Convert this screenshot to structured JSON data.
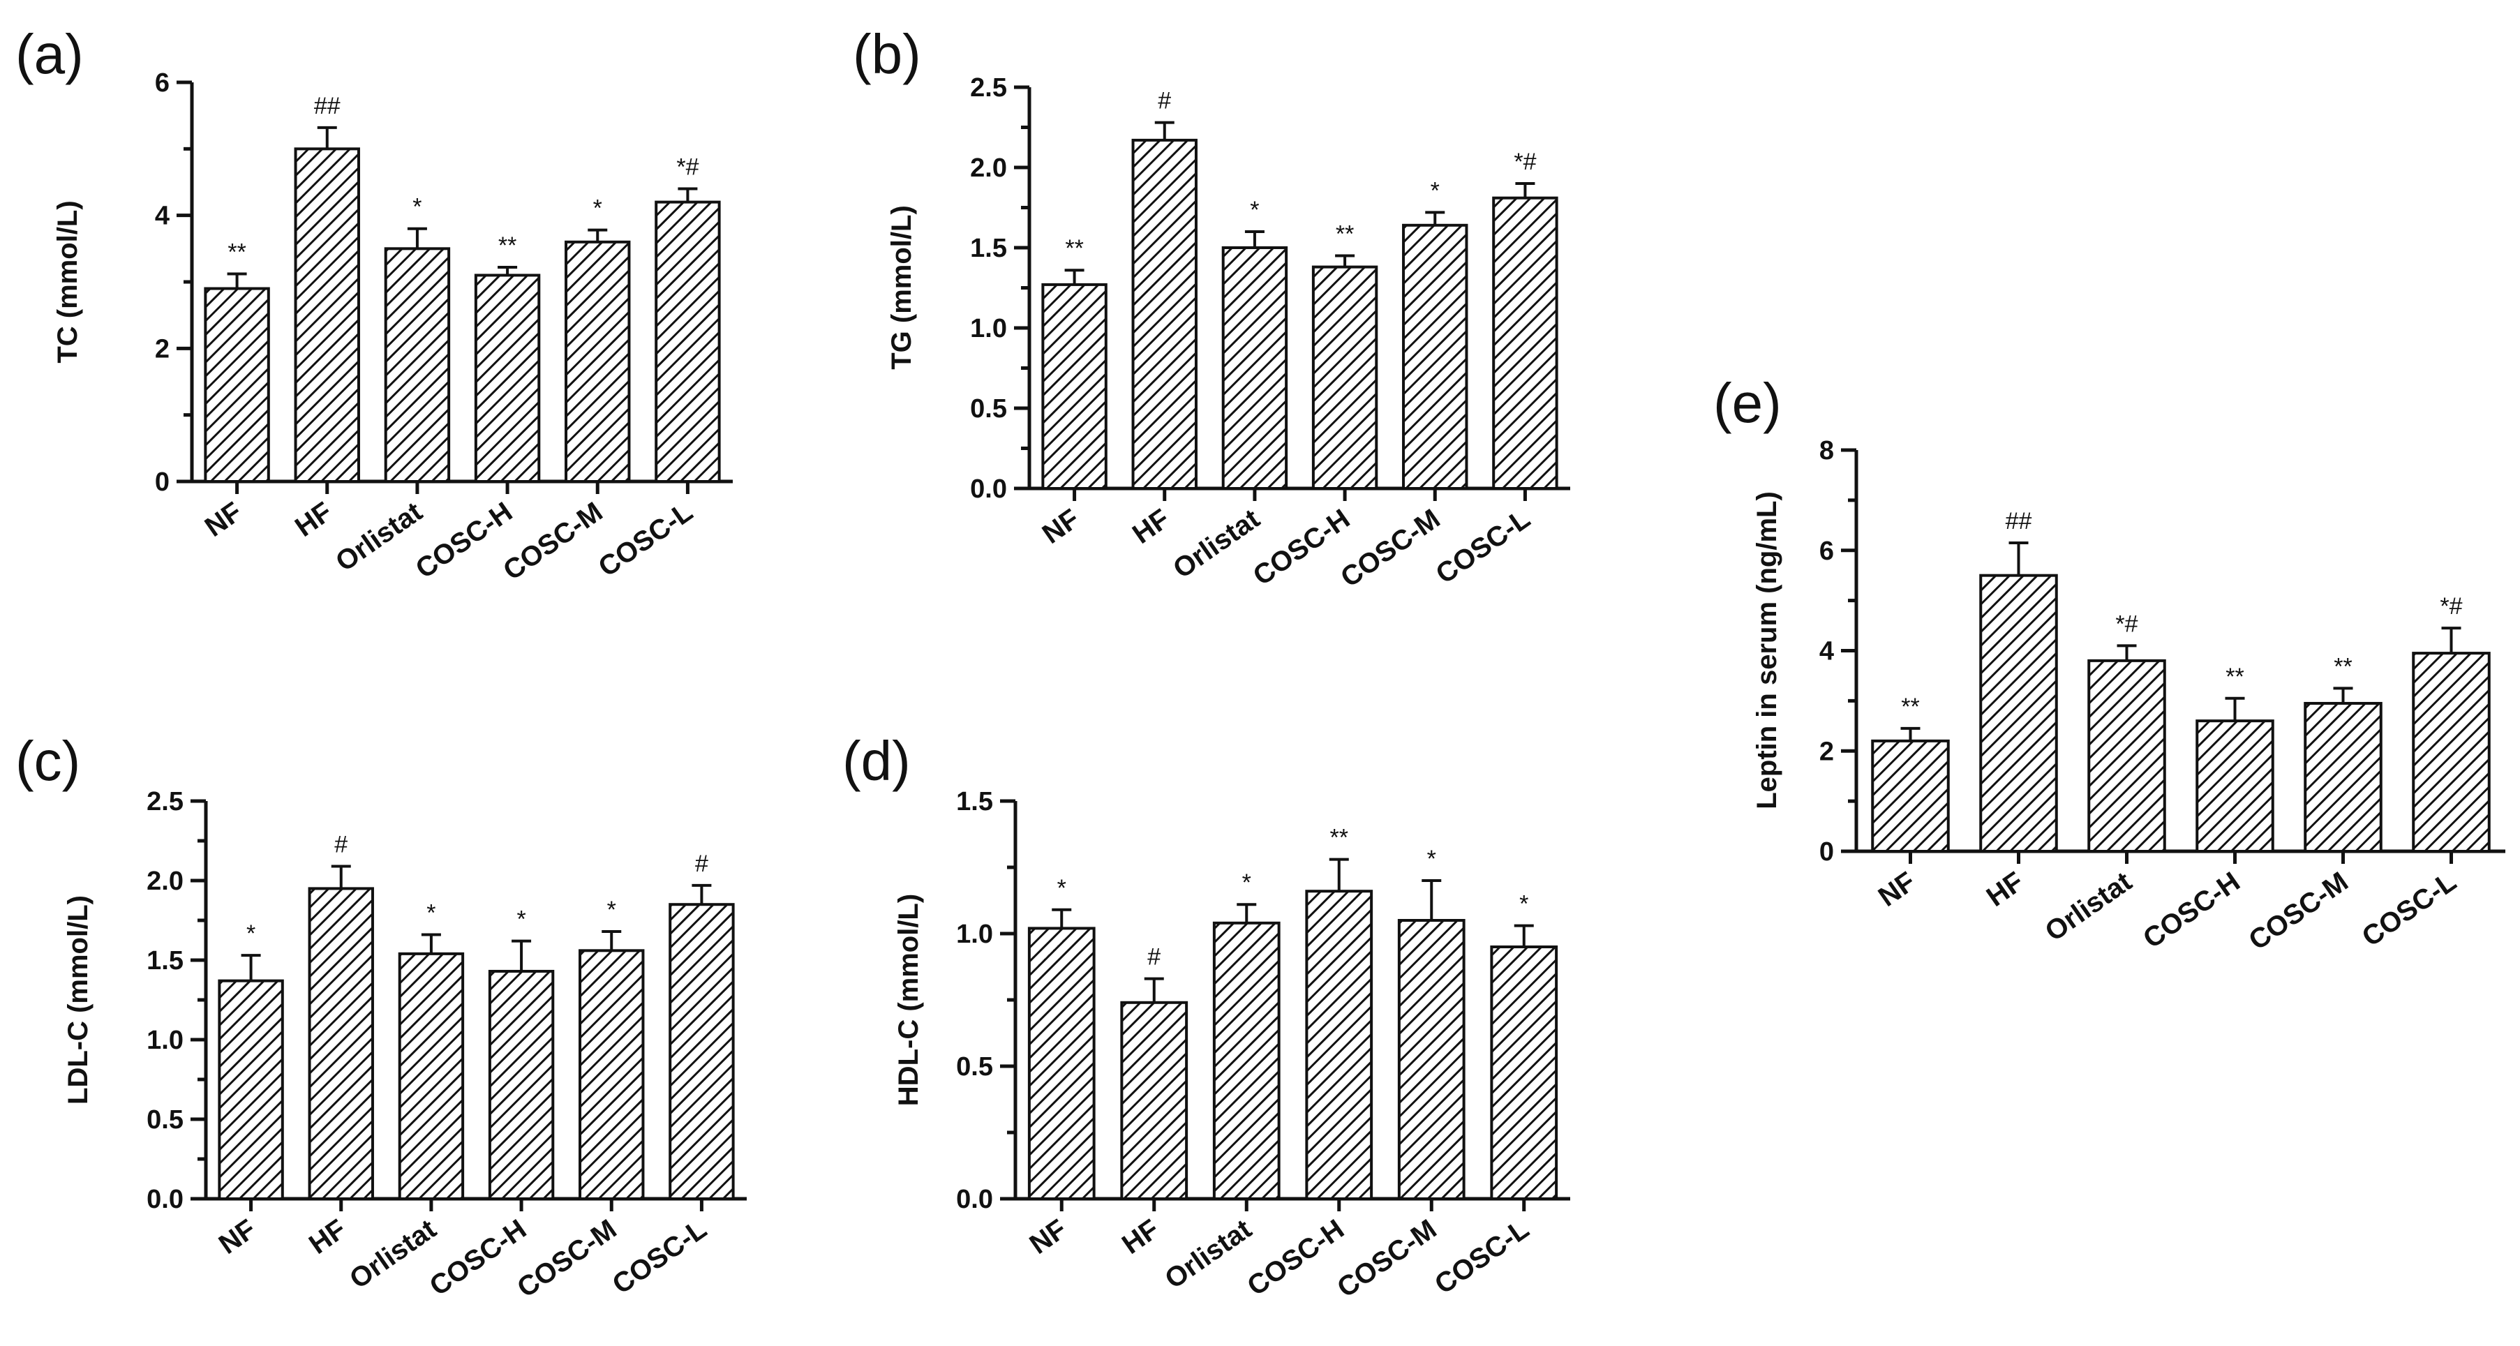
{
  "chart_data": [
    {
      "panel": "(a)",
      "type": "bar",
      "categories": [
        "NF",
        "HF",
        "Orlistat",
        "COSC-H",
        "COSC-M",
        "COSC-L"
      ],
      "values": [
        2.9,
        5.0,
        3.5,
        3.1,
        3.6,
        4.2
      ],
      "errors": [
        0.22,
        0.32,
        0.3,
        0.12,
        0.18,
        0.2
      ],
      "sig": [
        "**",
        "##",
        "*",
        "**",
        "*",
        "*#"
      ],
      "ylabel": "TC (mmol/L)",
      "ylim": [
        0,
        6
      ],
      "yticks": [
        "0",
        "2",
        "4",
        "6"
      ],
      "ytick_values": [
        0,
        2,
        4,
        6
      ]
    },
    {
      "panel": "(b)",
      "type": "bar",
      "categories": [
        "NF",
        "HF",
        "Orlistat",
        "COSC-H",
        "COSC-M",
        "COSC-L"
      ],
      "values": [
        1.27,
        2.17,
        1.5,
        1.38,
        1.64,
        1.81
      ],
      "errors": [
        0.09,
        0.11,
        0.1,
        0.07,
        0.08,
        0.09
      ],
      "sig": [
        "**",
        "#",
        "*",
        "**",
        "*",
        "*#"
      ],
      "ylabel": "TG (mmol/L)",
      "ylim": [
        0,
        2.5
      ],
      "yticks": [
        "0.0",
        "0.5",
        "1.0",
        "1.5",
        "2.0",
        "2.5"
      ],
      "ytick_values": [
        0,
        0.5,
        1.0,
        1.5,
        2.0,
        2.5
      ]
    },
    {
      "panel": "(c)",
      "type": "bar",
      "categories": [
        "NF",
        "HF",
        "Orlistat",
        "COSC-H",
        "COSC-M",
        "COSC-L"
      ],
      "values": [
        1.37,
        1.95,
        1.54,
        1.43,
        1.56,
        1.85
      ],
      "errors": [
        0.16,
        0.14,
        0.12,
        0.19,
        0.12,
        0.12
      ],
      "sig": [
        "*",
        "#",
        "*",
        "*",
        "*",
        "#"
      ],
      "ylabel": "LDL-C (mmol/L)",
      "ylim": [
        0,
        2.5
      ],
      "yticks": [
        "0.0",
        "0.5",
        "1.0",
        "1.5",
        "2.0",
        "2.5"
      ],
      "ytick_values": [
        0,
        0.5,
        1.0,
        1.5,
        2.0,
        2.5
      ]
    },
    {
      "panel": "(d)",
      "type": "bar",
      "categories": [
        "NF",
        "HF",
        "Orlistat",
        "COSC-H",
        "COSC-M",
        "COSC-L"
      ],
      "values": [
        1.02,
        0.74,
        1.04,
        1.16,
        1.05,
        0.95
      ],
      "errors": [
        0.07,
        0.09,
        0.07,
        0.12,
        0.15,
        0.08
      ],
      "sig": [
        "*",
        "#",
        "*",
        "**",
        "*",
        "*"
      ],
      "ylabel": "HDL-C (mmol/L)",
      "ylim": [
        0,
        1.5
      ],
      "yticks": [
        "0.0",
        "0.5",
        "1.0",
        "1.5"
      ],
      "ytick_values": [
        0,
        0.5,
        1.0,
        1.5
      ]
    },
    {
      "panel": "(e)",
      "type": "bar",
      "categories": [
        "NF",
        "HF",
        "Orlistat",
        "COSC-H",
        "COSC-M",
        "COSC-L"
      ],
      "values": [
        2.2,
        5.5,
        3.8,
        2.6,
        2.95,
        3.95
      ],
      "errors": [
        0.25,
        0.65,
        0.3,
        0.45,
        0.3,
        0.5
      ],
      "sig": [
        "**",
        "##",
        "*#",
        "**",
        "**",
        "*#"
      ],
      "ylabel": "Leptin in serum (ng/mL)",
      "ylim": [
        0,
        8
      ],
      "yticks": [
        "0",
        "2",
        "4",
        "6",
        "8"
      ],
      "ytick_values": [
        0,
        2,
        4,
        6,
        8
      ]
    }
  ]
}
